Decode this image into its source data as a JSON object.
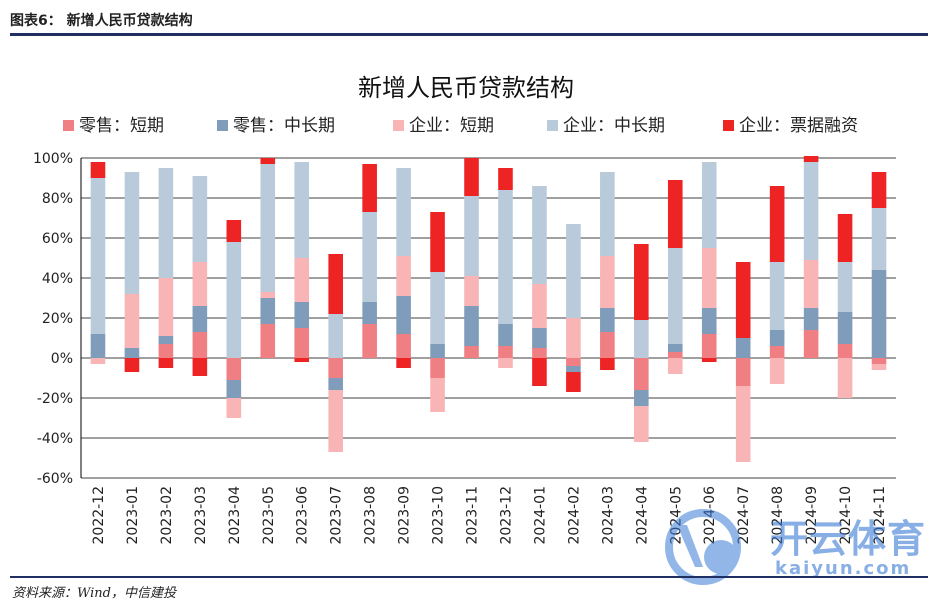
{
  "caption": "图表6： 新增人民币贷款结构",
  "source": "资料来源：Wind，中信建投",
  "watermark": {
    "brand": "开云体育",
    "url": "kaiyun.com"
  },
  "colors": {
    "retail_short": "#f07f84",
    "retail_mid_long": "#7f9cba",
    "corp_short": "#f9b4b6",
    "corp_mid_long": "#b9cadb",
    "bill": "#ee2424",
    "frame": "#1f2f63"
  },
  "chart_data": {
    "type": "bar",
    "stacked": true,
    "title": "新增人民币贷款结构",
    "xlabel": "",
    "ylabel": "",
    "ylim": [
      -60,
      100
    ],
    "yticks": [
      100,
      80,
      60,
      40,
      20,
      0,
      -20,
      -40,
      -60
    ],
    "ytick_labels": [
      "100%",
      "80%",
      "60%",
      "40%",
      "20%",
      "0%",
      "-20%",
      "-40%",
      "-60%"
    ],
    "legend_position": "top",
    "categories": [
      "2022-12",
      "2023-01",
      "2023-02",
      "2023-03",
      "2023-04",
      "2023-05",
      "2023-06",
      "2023-07",
      "2023-08",
      "2023-09",
      "2023-10",
      "2023-11",
      "2023-12",
      "2024-01",
      "2024-02",
      "2024-03",
      "2024-04",
      "2024-05",
      "2024-06",
      "2024-07",
      "2024-08",
      "2024-09",
      "2024-10",
      "2024-11"
    ],
    "series": [
      {
        "name": "零售：短期",
        "key": "retail_short",
        "values": [
          0,
          0,
          7,
          13,
          -11,
          17,
          15,
          -10,
          17,
          12,
          -10,
          6,
          6,
          5,
          -4,
          13,
          -16,
          3,
          12,
          -14,
          6,
          14,
          7,
          -3
        ]
      },
      {
        "name": "零售：中长期",
        "key": "retail_mid_long",
        "values": [
          12,
          5,
          4,
          13,
          -9,
          13,
          13,
          -6,
          11,
          19,
          7,
          20,
          11,
          10,
          -3,
          12,
          -8,
          4,
          13,
          10,
          8,
          11,
          16,
          44
        ]
      },
      {
        "name": "企业：短期",
        "key": "corp_short",
        "values": [
          -3,
          27,
          29,
          22,
          -10,
          3,
          22,
          -31,
          0,
          20,
          -17,
          15,
          -5,
          22,
          20,
          26,
          -18,
          -8,
          30,
          -38,
          -13,
          24,
          -20,
          -3
        ]
      },
      {
        "name": "企业：中长期",
        "key": "corp_mid_long",
        "values": [
          78,
          61,
          55,
          43,
          58,
          64,
          48,
          22,
          45,
          44,
          36,
          40,
          67,
          49,
          47,
          42,
          19,
          48,
          43,
          0,
          34,
          49,
          25,
          31
        ]
      },
      {
        "name": "企业：票据融资",
        "key": "bill",
        "values": [
          8,
          -7,
          -5,
          -9,
          11,
          3,
          -2,
          30,
          24,
          -5,
          30,
          19,
          11,
          -14,
          -10,
          -6,
          38,
          34,
          -2,
          38,
          38,
          3,
          24,
          18
        ]
      }
    ]
  }
}
